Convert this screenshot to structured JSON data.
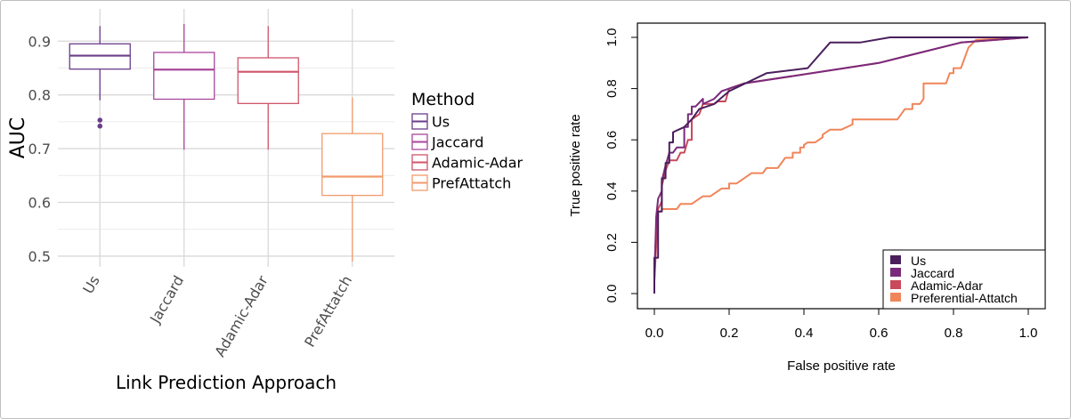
{
  "chart_data": [
    {
      "type": "box",
      "xlabel": "Link Prediction Approach",
      "ylabel": "AUC",
      "ylim": [
        0.48,
        0.96
      ],
      "yticks": [
        0.5,
        0.6,
        0.7,
        0.8,
        0.9
      ],
      "ytick_labels": [
        "0.5",
        "0.6",
        "0.7",
        "0.8",
        "0.9"
      ],
      "grid": true,
      "legend_title": "Method",
      "legend_position": "right",
      "categories": [
        "Us",
        "Jaccard",
        "Adamic-Adar",
        "PrefAttatch"
      ],
      "series": [
        {
          "name": "Us",
          "color": "#6a3d8a",
          "min": 0.79,
          "q1": 0.848,
          "median": 0.873,
          "q3": 0.895,
          "max": 0.928,
          "outliers": [
            0.753,
            0.742
          ]
        },
        {
          "name": "Jaccard",
          "color": "#a8479a",
          "min": 0.698,
          "q1": 0.792,
          "median": 0.847,
          "q3": 0.879,
          "max": 0.932,
          "outliers": []
        },
        {
          "name": "Adamic-Adar",
          "color": "#d0556b",
          "min": 0.698,
          "q1": 0.784,
          "median": 0.843,
          "q3": 0.869,
          "max": 0.928,
          "outliers": []
        },
        {
          "name": "PrefAttatch",
          "color": "#f29a6c",
          "min": 0.49,
          "q1": 0.613,
          "median": 0.648,
          "q3": 0.728,
          "max": 0.795,
          "outliers": []
        }
      ]
    },
    {
      "type": "line",
      "xlabel": "False positive rate",
      "ylabel": "True positive rate",
      "xlim": [
        0,
        1
      ],
      "ylim": [
        0,
        1
      ],
      "xticks": [
        0.0,
        0.2,
        0.4,
        0.6,
        0.8,
        1.0
      ],
      "xtick_labels": [
        "0.0",
        "0.2",
        "0.4",
        "0.6",
        "0.8",
        "1.0"
      ],
      "yticks": [
        0.0,
        0.2,
        0.4,
        0.6,
        0.8,
        1.0
      ],
      "ytick_labels": [
        "0.0",
        "0.2",
        "0.4",
        "0.6",
        "0.8",
        "1.0"
      ],
      "grid": false,
      "legend_position": "bottom-right",
      "series": [
        {
          "name": "Us",
          "color": "#4a1f5c",
          "x": [
            0,
            0,
            0.01,
            0.01,
            0.02,
            0.02,
            0.03,
            0.03,
            0.04,
            0.04,
            0.05,
            0.05,
            0.08,
            0.1,
            0.12,
            0.16,
            0.2,
            0.3,
            0.41,
            0.47,
            0.55,
            0.63,
            0.83,
            1.0
          ],
          "y": [
            0,
            0.14,
            0.14,
            0.32,
            0.32,
            0.45,
            0.45,
            0.51,
            0.51,
            0.59,
            0.59,
            0.63,
            0.65,
            0.68,
            0.72,
            0.74,
            0.79,
            0.86,
            0.88,
            0.98,
            0.98,
            1.0,
            1.0,
            1.0
          ]
        },
        {
          "name": "Jaccard",
          "color": "#7a2a7a",
          "x": [
            0,
            0,
            0.005,
            0.01,
            0.02,
            0.02,
            0.03,
            0.04,
            0.05,
            0.06,
            0.08,
            0.08,
            0.09,
            0.09,
            0.1,
            0.1,
            0.11,
            0.13,
            0.13,
            0.16,
            0.18,
            0.2,
            0.24,
            0.6,
            0.82,
            1.0
          ],
          "y": [
            0,
            0.05,
            0.3,
            0.37,
            0.4,
            0.44,
            0.5,
            0.55,
            0.55,
            0.57,
            0.57,
            0.65,
            0.65,
            0.7,
            0.7,
            0.73,
            0.73,
            0.76,
            0.74,
            0.76,
            0.79,
            0.8,
            0.82,
            0.9,
            0.98,
            1.0
          ]
        },
        {
          "name": "Adamic-Adar",
          "color": "#c94a5a",
          "x": [
            0,
            0,
            0.01,
            0.02,
            0.02,
            0.03,
            0.04,
            0.06,
            0.07,
            0.08,
            0.09,
            0.1,
            0.1,
            0.12,
            0.13,
            0.16,
            0.17,
            0.19,
            0.2,
            0.24,
            0.6,
            0.82,
            1.0
          ],
          "y": [
            0,
            0.05,
            0.33,
            0.36,
            0.42,
            0.48,
            0.52,
            0.52,
            0.55,
            0.55,
            0.6,
            0.6,
            0.68,
            0.7,
            0.74,
            0.74,
            0.75,
            0.75,
            0.8,
            0.82,
            0.9,
            0.98,
            1.0
          ]
        },
        {
          "name": "Preferential-Attatch",
          "color": "#f0855a",
          "x": [
            0,
            0,
            0.005,
            0.01,
            0.01,
            0.02,
            0.02,
            0.06,
            0.07,
            0.1,
            0.13,
            0.15,
            0.18,
            0.2,
            0.2,
            0.22,
            0.24,
            0.26,
            0.29,
            0.3,
            0.33,
            0.35,
            0.37,
            0.37,
            0.39,
            0.39,
            0.4,
            0.4,
            0.41,
            0.43,
            0.45,
            0.45,
            0.47,
            0.5,
            0.53,
            0.53,
            0.58,
            0.65,
            0.66,
            0.67,
            0.69,
            0.69,
            0.71,
            0.72,
            0.72,
            0.78,
            0.79,
            0.8,
            0.8,
            0.82,
            0.83,
            0.84,
            0.86,
            1.0
          ],
          "y": [
            0,
            0.1,
            0.25,
            0.3,
            0.32,
            0.32,
            0.33,
            0.33,
            0.35,
            0.35,
            0.38,
            0.38,
            0.41,
            0.41,
            0.43,
            0.43,
            0.45,
            0.47,
            0.47,
            0.49,
            0.49,
            0.53,
            0.53,
            0.55,
            0.55,
            0.57,
            0.57,
            0.58,
            0.59,
            0.59,
            0.61,
            0.62,
            0.64,
            0.64,
            0.66,
            0.68,
            0.68,
            0.68,
            0.7,
            0.72,
            0.72,
            0.74,
            0.74,
            0.76,
            0.82,
            0.82,
            0.86,
            0.86,
            0.88,
            0.88,
            0.92,
            0.96,
            0.99,
            1.0
          ]
        }
      ]
    }
  ]
}
